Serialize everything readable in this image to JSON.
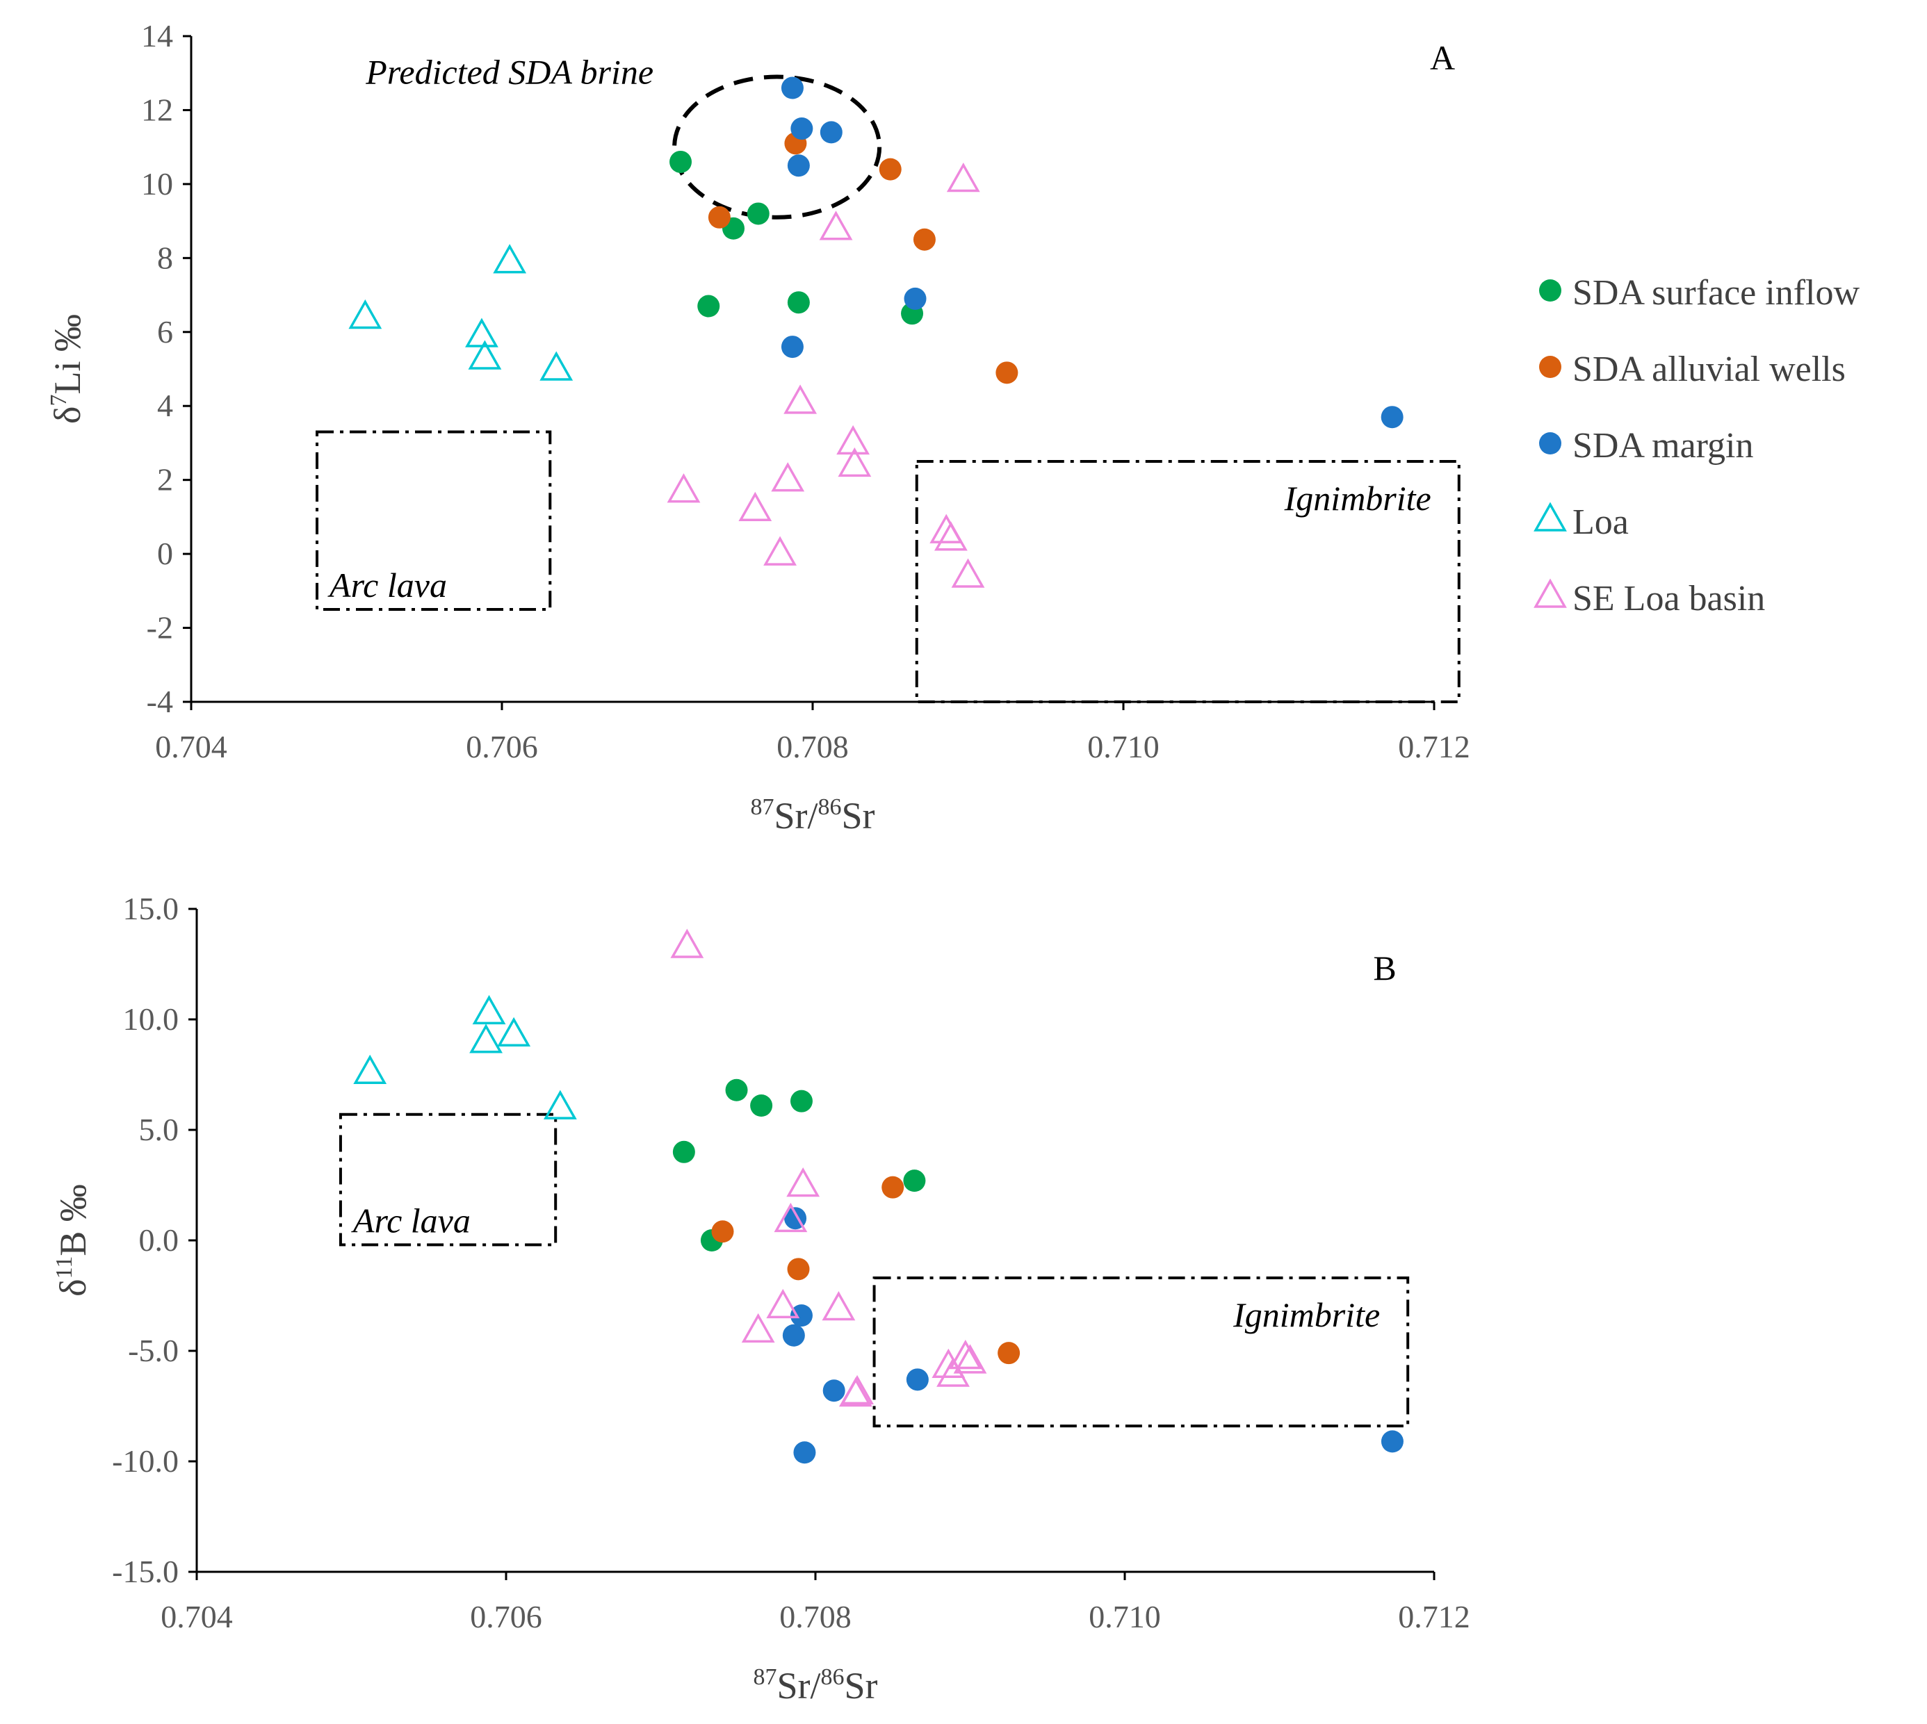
{
  "legend": [
    {
      "label": "SDA surface inflow",
      "marker": "circle",
      "color": "#00a650"
    },
    {
      "label": "SDA alluvial wells",
      "marker": "circle",
      "color": "#d95f0e"
    },
    {
      "label": "SDA margin",
      "marker": "circle",
      "color": "#1f77c8"
    },
    {
      "label": "Loa",
      "marker": "triangle",
      "color": "#00c8d4"
    },
    {
      "label": "SE  Loa basin",
      "marker": "triangle",
      "color": "#ee88dd"
    }
  ],
  "chart_data": [
    {
      "panel": "A",
      "type": "scatter",
      "title": "",
      "xlabel": {
        "sup1": "87",
        "base1": "Sr/",
        "sup2": "86",
        "base2": "Sr"
      },
      "ylabel": {
        "base1": "δ",
        "sup": "7",
        "base2": "Li ‰"
      },
      "xlim": [
        0.704,
        0.712
      ],
      "ylim": [
        -4,
        14
      ],
      "xticks": [
        "0.704",
        "0.706",
        "0.708",
        "0.710",
        "0.712"
      ],
      "yticks": [
        "-4",
        "-2",
        "0",
        "2",
        "4",
        "6",
        "8",
        "10",
        "12",
        "14"
      ],
      "legend_position": "right",
      "series": [
        {
          "name": "SDA surface inflow",
          "points": [
            [
              0.70715,
              10.6
            ],
            [
              0.70733,
              6.7
            ],
            [
              0.70749,
              8.8
            ],
            [
              0.70765,
              9.2
            ],
            [
              0.70791,
              6.8
            ],
            [
              0.70864,
              6.5
            ]
          ]
        },
        {
          "name": "SDA alluvial wells",
          "points": [
            [
              0.7074,
              9.1
            ],
            [
              0.70789,
              11.1
            ],
            [
              0.7085,
              10.4
            ],
            [
              0.70872,
              8.5
            ],
            [
              0.70925,
              4.9
            ]
          ]
        },
        {
          "name": "SDA margin",
          "points": [
            [
              0.70787,
              12.6
            ],
            [
              0.70793,
              11.5
            ],
            [
              0.70812,
              11.4
            ],
            [
              0.70791,
              10.5
            ],
            [
              0.70787,
              5.6
            ],
            [
              0.70866,
              6.9
            ],
            [
              0.71173,
              3.7
            ]
          ]
        },
        {
          "name": "Loa",
          "points": [
            [
              0.70512,
              6.4
            ],
            [
              0.70587,
              5.9
            ],
            [
              0.70589,
              5.3
            ],
            [
              0.70605,
              7.9
            ],
            [
              0.70635,
              5.0
            ]
          ]
        },
        {
          "name": "SE  Loa basin",
          "points": [
            [
              0.70717,
              1.7
            ],
            [
              0.70763,
              1.2
            ],
            [
              0.70779,
              0.0
            ],
            [
              0.70784,
              2.0
            ],
            [
              0.70792,
              4.1
            ],
            [
              0.70815,
              8.8
            ],
            [
              0.70826,
              3.0
            ],
            [
              0.70827,
              2.4
            ],
            [
              0.70886,
              0.6
            ],
            [
              0.70889,
              0.4
            ],
            [
              0.70897,
              10.1
            ],
            [
              0.709,
              -0.6
            ]
          ]
        }
      ],
      "regions": [
        {
          "label": "Arc lava",
          "x": [
            0.70481,
            0.70631
          ],
          "y": [
            -1.5,
            3.3
          ]
        },
        {
          "label": "Ignimbrite",
          "x": [
            0.70867,
            0.71216
          ],
          "y": [
            -4.0,
            2.5
          ]
        }
      ],
      "ellipse": {
        "label": "Predicted SDA brine",
        "center": [
          0.70777,
          11.0
        ],
        "radius": [
          0.00066,
          1.9
        ]
      }
    },
    {
      "panel": "B",
      "type": "scatter",
      "title": "",
      "xlabel": {
        "sup1": "87",
        "base1": "Sr/",
        "sup2": "86",
        "base2": "Sr"
      },
      "ylabel": {
        "base1": "δ",
        "sup": "11",
        "base2": "B ‰"
      },
      "xlim": [
        0.704,
        0.712
      ],
      "ylim": [
        -15,
        15
      ],
      "xticks": [
        "0.704",
        "0.706",
        "0.708",
        "0.710",
        "0.712"
      ],
      "yticks": [
        "-15.0",
        "-10.0",
        "-5.0",
        "0.0",
        "5.0",
        "10.0",
        "15.0"
      ],
      "legend_position": "none",
      "series": [
        {
          "name": "SDA surface inflow",
          "points": [
            [
              0.70715,
              4.0
            ],
            [
              0.70733,
              0.0
            ],
            [
              0.70749,
              6.8
            ],
            [
              0.70765,
              6.1
            ],
            [
              0.70791,
              6.3
            ],
            [
              0.70864,
              2.7
            ]
          ]
        },
        {
          "name": "SDA alluvial wells",
          "points": [
            [
              0.7074,
              0.4
            ],
            [
              0.70789,
              -1.3
            ],
            [
              0.7085,
              2.4
            ],
            [
              0.70925,
              -5.1
            ]
          ]
        },
        {
          "name": "SDA margin",
          "points": [
            [
              0.70787,
              1.0
            ],
            [
              0.70791,
              -3.4
            ],
            [
              0.70786,
              -4.3
            ],
            [
              0.70812,
              -6.8
            ],
            [
              0.70793,
              -9.6
            ],
            [
              0.70866,
              -6.3
            ],
            [
              0.71173,
              -9.1
            ]
          ]
        },
        {
          "name": "Loa",
          "points": [
            [
              0.70512,
              7.6
            ],
            [
              0.70587,
              9.0
            ],
            [
              0.70589,
              10.3
            ],
            [
              0.70605,
              9.3
            ],
            [
              0.70635,
              6.0
            ]
          ]
        },
        {
          "name": "SE  Loa basin",
          "points": [
            [
              0.70717,
              13.3
            ],
            [
              0.70763,
              -4.1
            ],
            [
              0.70779,
              -3.0
            ],
            [
              0.70784,
              0.9
            ],
            [
              0.70792,
              2.5
            ],
            [
              0.70815,
              -3.1
            ],
            [
              0.70826,
              -7.0
            ],
            [
              0.70827,
              -6.9
            ],
            [
              0.70886,
              -5.7
            ],
            [
              0.70889,
              -6.1
            ],
            [
              0.70897,
              -5.3
            ],
            [
              0.709,
              -5.5
            ]
          ]
        }
      ],
      "regions": [
        {
          "label": "Arc lava",
          "x": [
            0.70493,
            0.70632
          ],
          "y": [
            -0.2,
            5.7
          ]
        },
        {
          "label": "Ignimbrite",
          "x": [
            0.70838,
            0.71183
          ],
          "y": [
            -8.4,
            -1.7
          ]
        }
      ]
    }
  ]
}
